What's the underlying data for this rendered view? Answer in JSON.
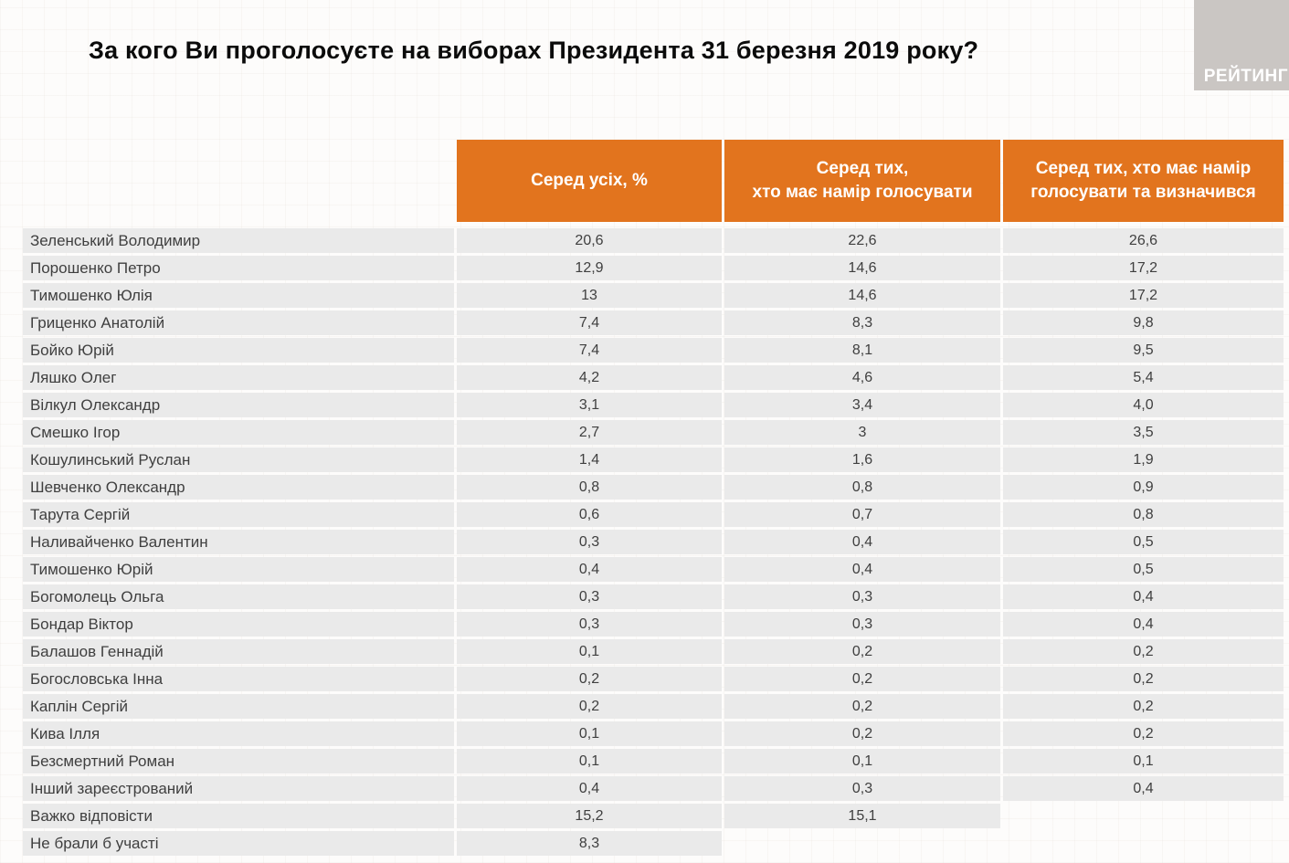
{
  "title": "За кого Ви проголосуєте на виборах Президента 31 березня 2019 року?",
  "logo": {
    "text": "РЕЙТИНГ"
  },
  "colors": {
    "accent_orange": "#E2741E",
    "row_background": "#EAEAEA",
    "logo_background": "#CAC6C3",
    "header_text": "#FFFFFF",
    "body_text": "#3F3F3F"
  },
  "table": {
    "columns": {
      "all": "Серед усіх, %",
      "intend": "Серед тих,\nхто має намір голосувати",
      "decided": "Серед тих, хто має намір\nголосувати та визначився"
    },
    "rows": [
      {
        "name": "Зеленський Володимир",
        "all": "20,6",
        "intend": "22,6",
        "decided": "26,6"
      },
      {
        "name": "Порошенко Петро",
        "all": "12,9",
        "intend": "14,6",
        "decided": "17,2"
      },
      {
        "name": "Тимошенко Юлія",
        "all": "13",
        "intend": "14,6",
        "decided": "17,2"
      },
      {
        "name": "Гриценко Анатолій",
        "all": "7,4",
        "intend": "8,3",
        "decided": "9,8"
      },
      {
        "name": "Бойко Юрій",
        "all": "7,4",
        "intend": "8,1",
        "decided": "9,5"
      },
      {
        "name": "Ляшко Олег",
        "all": "4,2",
        "intend": "4,6",
        "decided": "5,4"
      },
      {
        "name": "Вілкул Олександр",
        "all": "3,1",
        "intend": "3,4",
        "decided": "4,0"
      },
      {
        "name": "Смешко Ігор",
        "all": "2,7",
        "intend": "3",
        "decided": "3,5"
      },
      {
        "name": "Кошулинський Руслан",
        "all": "1,4",
        "intend": "1,6",
        "decided": "1,9"
      },
      {
        "name": "Шевченко Олександр",
        "all": "0,8",
        "intend": "0,8",
        "decided": "0,9"
      },
      {
        "name": "Тарута Сергій",
        "all": "0,6",
        "intend": "0,7",
        "decided": "0,8"
      },
      {
        "name": "Наливайченко Валентин",
        "all": "0,3",
        "intend": "0,4",
        "decided": "0,5"
      },
      {
        "name": "Тимошенко Юрій",
        "all": "0,4",
        "intend": "0,4",
        "decided": "0,5"
      },
      {
        "name": "Богомолець Ольга",
        "all": "0,3",
        "intend": "0,3",
        "decided": "0,4"
      },
      {
        "name": "Бондар Віктор",
        "all": "0,3",
        "intend": "0,3",
        "decided": "0,4"
      },
      {
        "name": "Балашов Геннадій",
        "all": "0,1",
        "intend": "0,2",
        "decided": "0,2"
      },
      {
        "name": "Богословська Інна",
        "all": "0,2",
        "intend": "0,2",
        "decided": "0,2"
      },
      {
        "name": "Каплін Сергій",
        "all": "0,2",
        "intend": "0,2",
        "decided": "0,2"
      },
      {
        "name": "Кива Ілля",
        "all": "0,1",
        "intend": "0,2",
        "decided": "0,2"
      },
      {
        "name": "Безсмертний Роман",
        "all": "0,1",
        "intend": "0,1",
        "decided": "0,1"
      },
      {
        "name": "Інший зареєстрований",
        "all": "0,4",
        "intend": "0,3",
        "decided": "0,4"
      },
      {
        "name": "Важко відповісти",
        "all": "15,2",
        "intend": "15,1",
        "decided": ""
      },
      {
        "name": "Не брали б участі",
        "all": "8,3",
        "intend": "",
        "decided": ""
      }
    ]
  },
  "chart_data": {
    "type": "table",
    "title": "За кого Ви проголосуєте на виборах Президента 31 березня 2019 року?",
    "categories": [
      "Зеленський Володимир",
      "Порошенко Петро",
      "Тимошенко Юлія",
      "Гриценко Анатолій",
      "Бойко Юрій",
      "Ляшко Олег",
      "Вілкул Олександр",
      "Смешко Ігор",
      "Кошулинський Руслан",
      "Шевченко Олександр",
      "Тарута Сергій",
      "Наливайченко Валентин",
      "Тимошенко Юрій",
      "Богомолець Ольга",
      "Бондар Віктор",
      "Балашов Геннадій",
      "Богословська Інна",
      "Каплін Сергій",
      "Кива Ілля",
      "Безсмертний Роман",
      "Інший зареєстрований",
      "Важко відповісти",
      "Не брали б участі"
    ],
    "series": [
      {
        "name": "Серед усіх, %",
        "values": [
          20.6,
          12.9,
          13,
          7.4,
          7.4,
          4.2,
          3.1,
          2.7,
          1.4,
          0.8,
          0.6,
          0.3,
          0.4,
          0.3,
          0.3,
          0.1,
          0.2,
          0.2,
          0.1,
          0.1,
          0.4,
          15.2,
          8.3
        ]
      },
      {
        "name": "Серед тих, хто має намір голосувати",
        "values": [
          22.6,
          14.6,
          14.6,
          8.3,
          8.1,
          4.6,
          3.4,
          3,
          1.6,
          0.8,
          0.7,
          0.4,
          0.4,
          0.3,
          0.3,
          0.2,
          0.2,
          0.2,
          0.2,
          0.1,
          0.3,
          15.1,
          null
        ]
      },
      {
        "name": "Серед тих, хто має намір голосувати та визначився",
        "values": [
          26.6,
          17.2,
          17.2,
          9.8,
          9.5,
          5.4,
          4.0,
          3.5,
          1.9,
          0.9,
          0.8,
          0.5,
          0.5,
          0.4,
          0.4,
          0.2,
          0.2,
          0.2,
          0.2,
          0.1,
          0.4,
          null,
          null
        ]
      }
    ]
  }
}
